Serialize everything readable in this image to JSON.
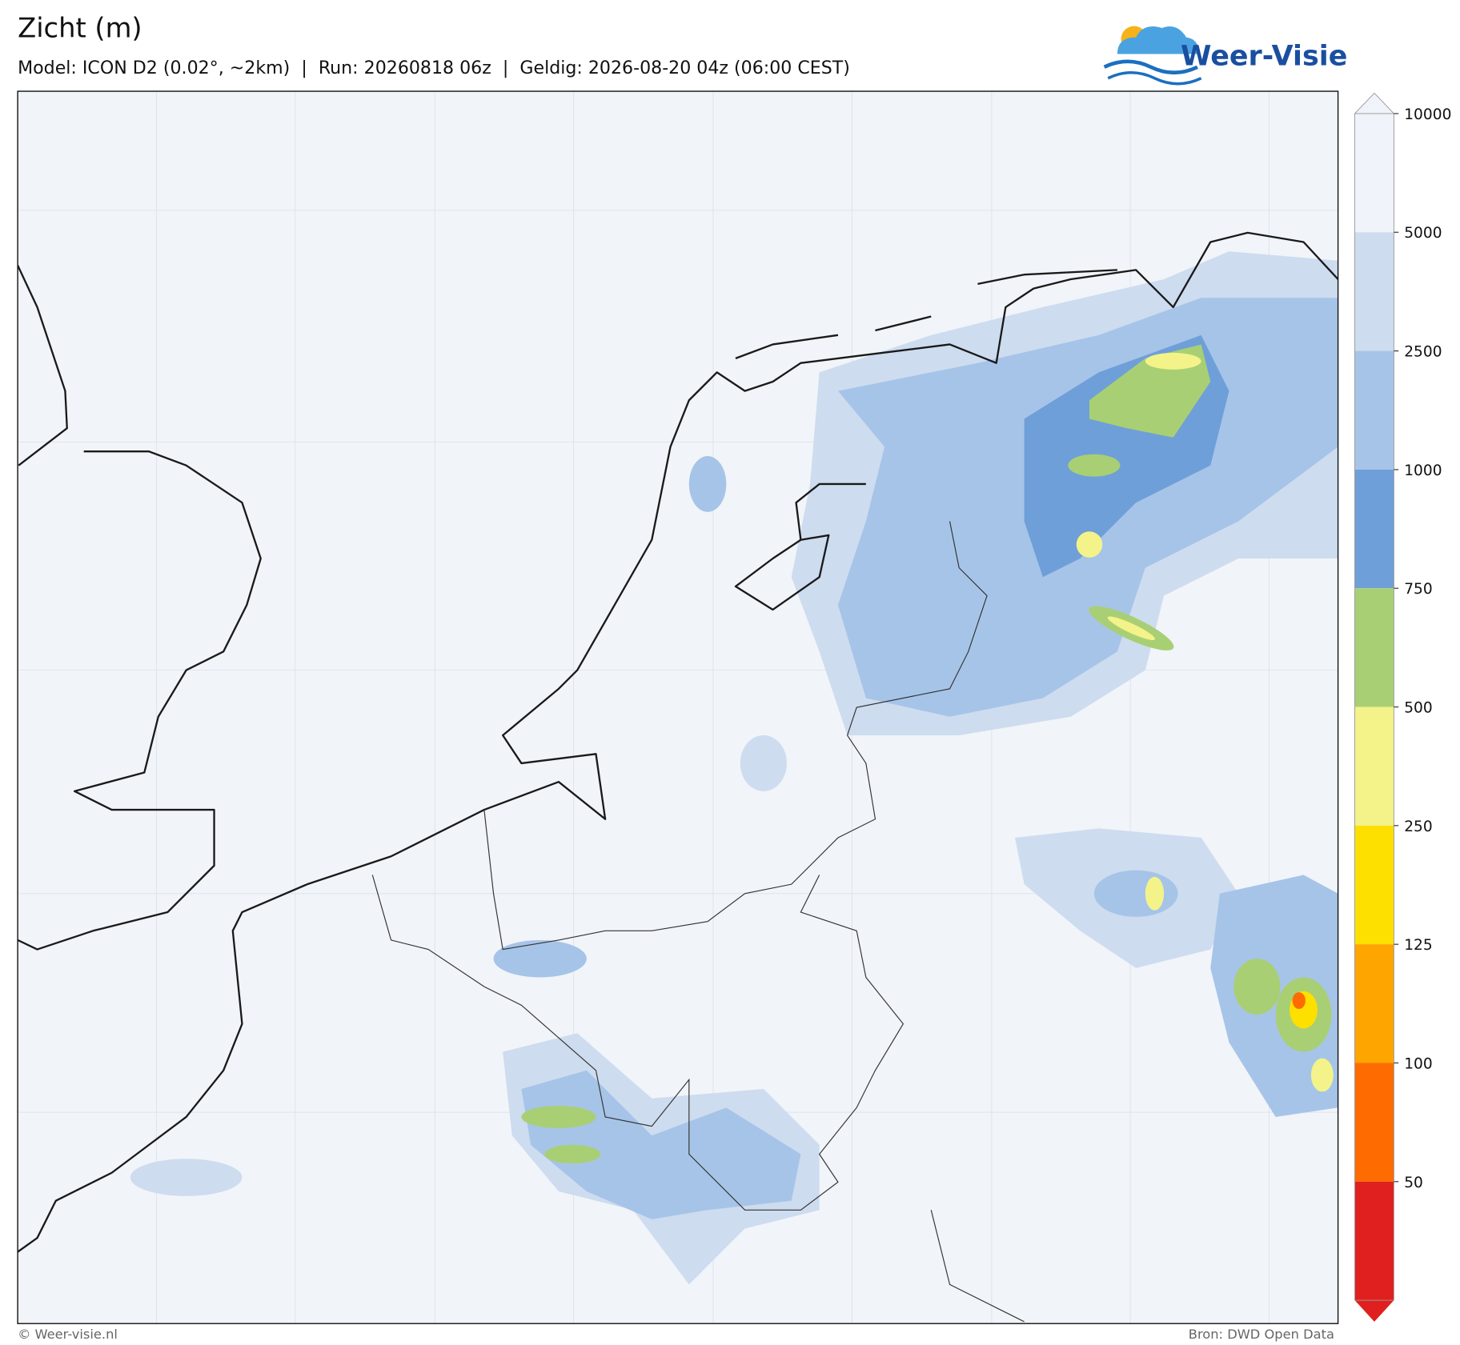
{
  "header": {
    "title": "Zicht (m)",
    "subtitle": "Model: ICON D2 (0.02°, ~2km)  |  Run: 20260818 06z  |  Geldig: 2026-08-20 04z (06:00 CEST)"
  },
  "logo": {
    "text": "Weer-Visie"
  },
  "colorbar": {
    "ticks": [
      10000,
      5000,
      2500,
      1000,
      750,
      500,
      250,
      125,
      100,
      50
    ],
    "colors": [
      "#f0f4fa",
      "#cddcef",
      "#a6c4e8",
      "#6f9fd8",
      "#a9cf74",
      "#f3f38a",
      "#fde000",
      "#fea500",
      "#fe6b00",
      "#e0201e"
    ]
  },
  "footer": {
    "left": "© Weer-visie.nl",
    "right": "Bron: DWD Open Data"
  }
}
